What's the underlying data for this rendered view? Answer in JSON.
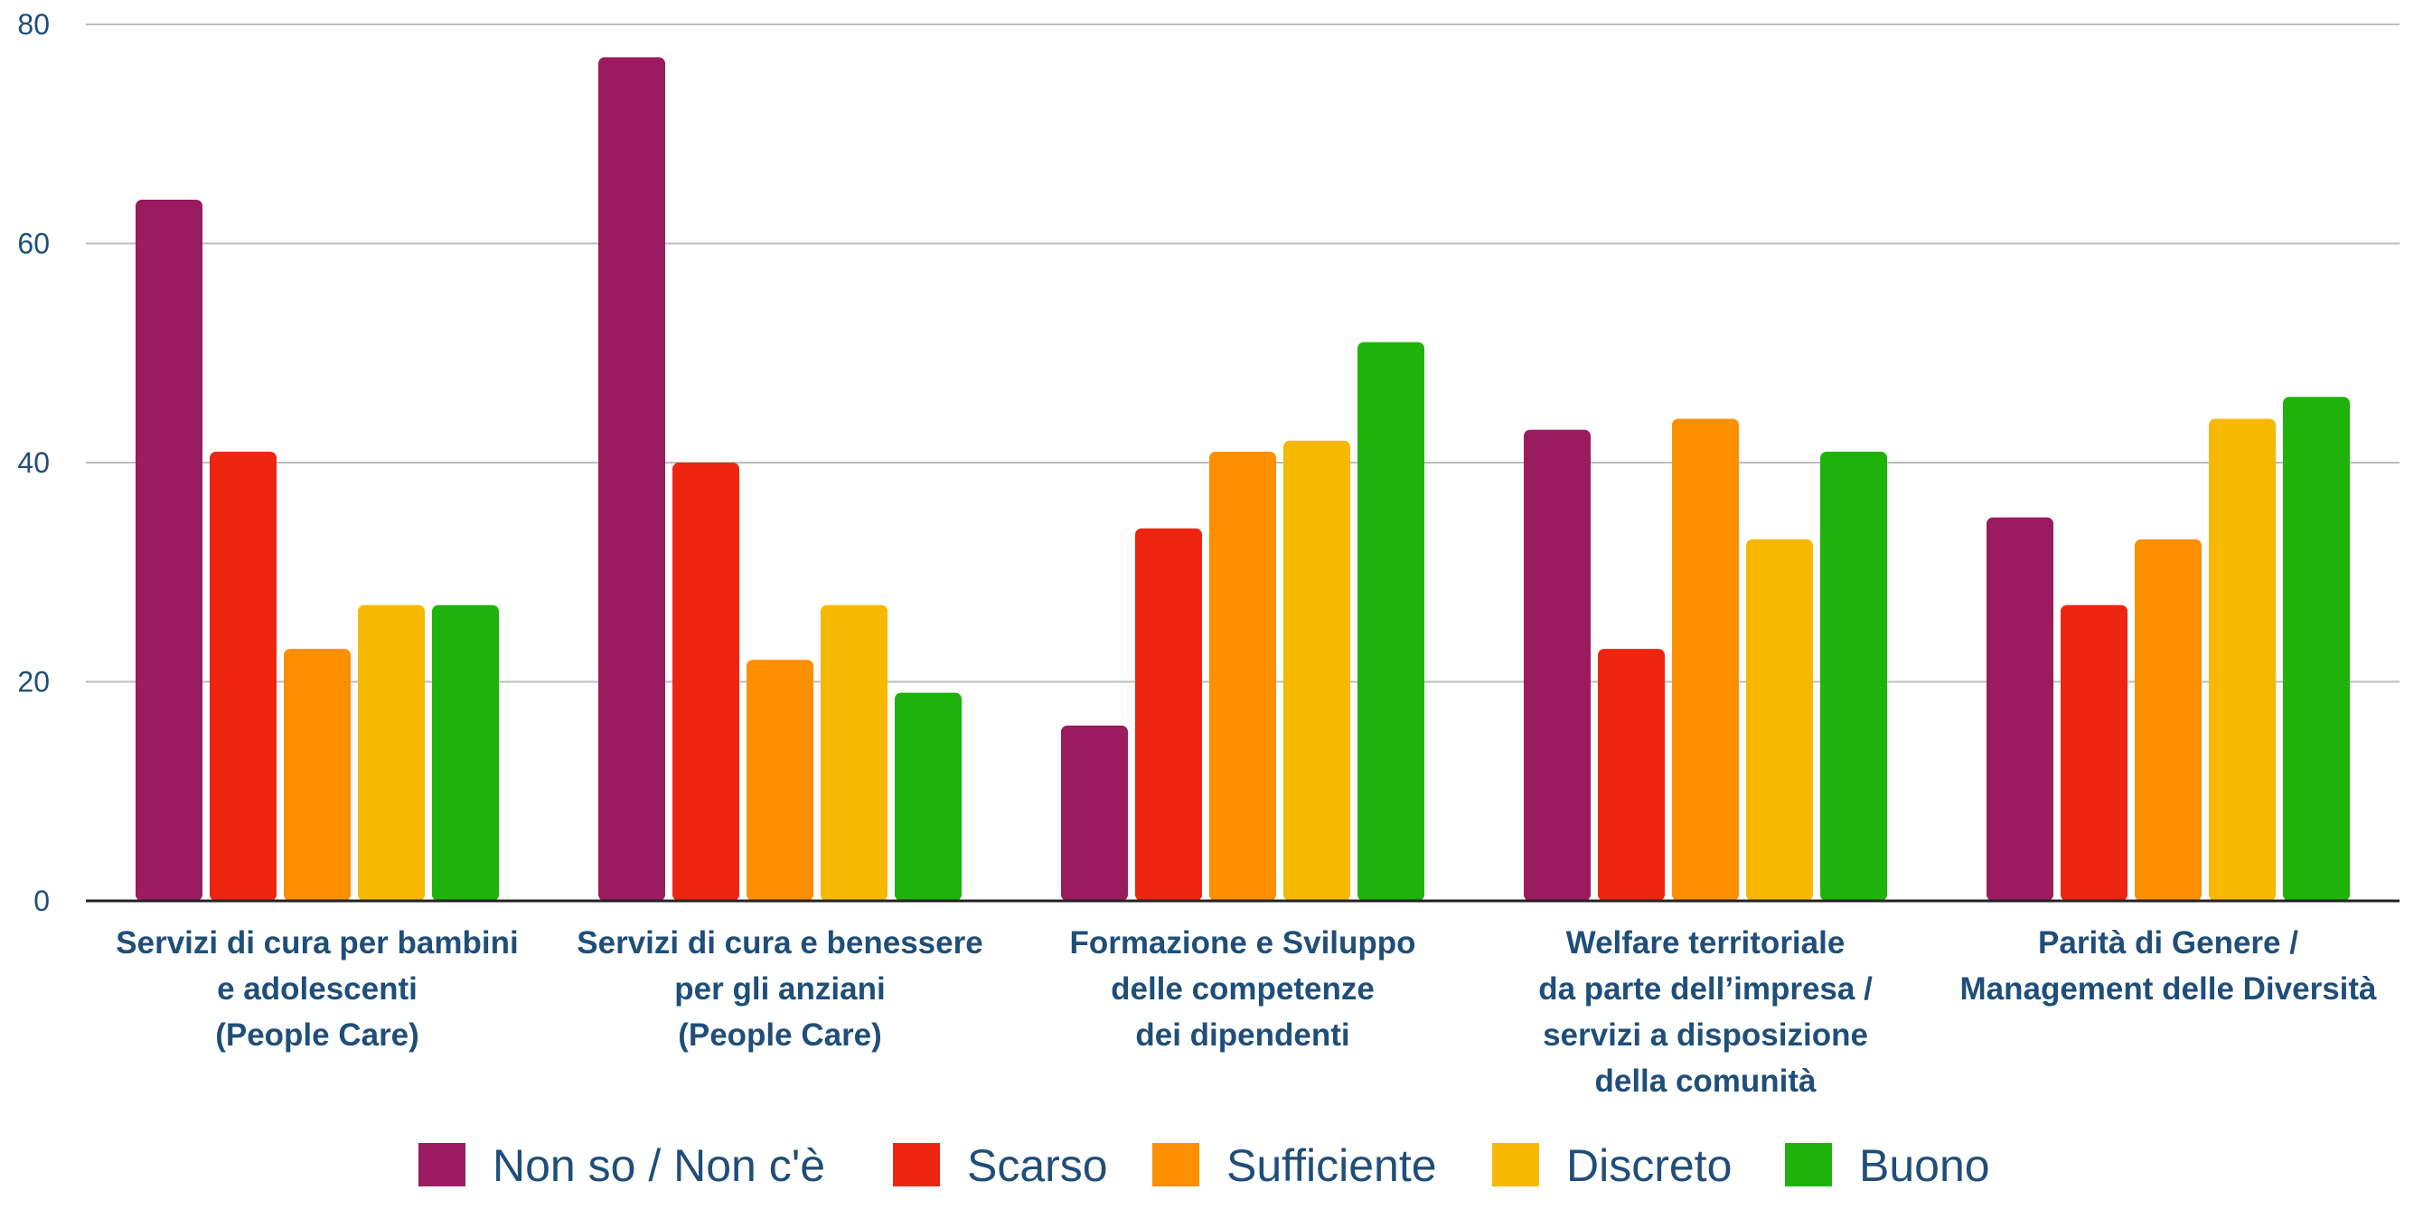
{
  "chart_data": {
    "type": "bar",
    "title": "",
    "xlabel": "",
    "ylabel": "",
    "ylim": [
      0,
      80
    ],
    "yticks": [
      0,
      20,
      40,
      60,
      80
    ],
    "grid": true,
    "legend_position": "bottom",
    "categories": [
      [
        "Servizi di cura per bambini",
        "e adolescenti",
        "(People Care)"
      ],
      [
        "Servizi di cura e benessere",
        "per gli anziani",
        "(People Care)"
      ],
      [
        "Formazione e Sviluppo",
        "delle competenze",
        "dei dipendenti"
      ],
      [
        "Welfare territoriale",
        "da parte dell’impresa /",
        "servizi a disposizione",
        "della comunità"
      ],
      [
        "Parità di Genere /",
        "Management delle Diversità"
      ]
    ],
    "series": [
      {
        "name": "Non so / Non c'è",
        "color": "#9a1b5f",
        "values": [
          64,
          77,
          16,
          43,
          35
        ]
      },
      {
        "name": "Scarso",
        "color": "#ee2510",
        "values": [
          41,
          40,
          34,
          23,
          27
        ]
      },
      {
        "name": "Sufficiente",
        "color": "#fc8f00",
        "values": [
          23,
          22,
          41,
          44,
          33
        ]
      },
      {
        "name": "Discreto",
        "color": "#f6b800",
        "values": [
          27,
          27,
          42,
          33,
          44
        ]
      },
      {
        "name": "Buono",
        "color": "#1fb20b",
        "values": [
          27,
          19,
          51,
          41,
          46
        ]
      }
    ]
  }
}
